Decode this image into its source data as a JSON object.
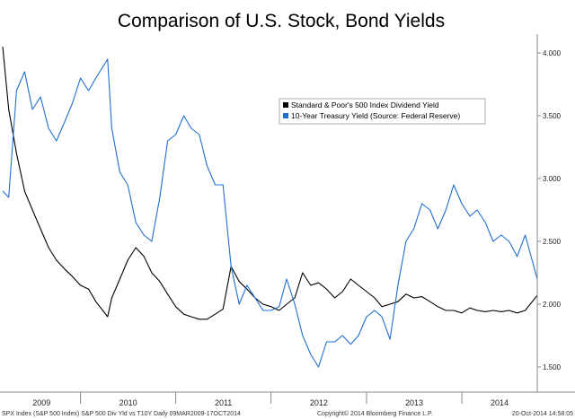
{
  "chart_data": {
    "type": "line",
    "title": "Comparison of U.S. Stock, Bond Yields",
    "xlabel": "",
    "ylabel": "",
    "x_ticks": [
      "2009",
      "2010",
      "2011",
      "2012",
      "2013",
      "2014"
    ],
    "y_ticks": [
      "1.500",
      "2.000",
      "2.500",
      "3.000",
      "3.500",
      "4.000"
    ],
    "ylim": [
      1.35,
      4.15
    ],
    "xlim": [
      "2009-03-09",
      "2014-10-17"
    ],
    "grid": false,
    "legend_position": "upper-right",
    "series": [
      {
        "name": "Standard & Poor's 500 Index Dividend Yield",
        "color": "#000000",
        "x": [
          "2009-03-09",
          "2009-04-01",
          "2009-05-01",
          "2009-06-01",
          "2009-07-01",
          "2009-08-01",
          "2009-09-01",
          "2009-10-01",
          "2009-11-01",
          "2009-12-01",
          "2010-01-01",
          "2010-02-01",
          "2010-03-01",
          "2010-04-15",
          "2010-05-01",
          "2010-06-01",
          "2010-07-01",
          "2010-08-01",
          "2010-09-01",
          "2010-10-01",
          "2010-11-01",
          "2010-12-01",
          "2011-01-01",
          "2011-02-01",
          "2011-03-01",
          "2011-04-01",
          "2011-05-01",
          "2011-06-01",
          "2011-07-01",
          "2011-08-01",
          "2011-09-01",
          "2011-10-01",
          "2011-11-01",
          "2011-12-01",
          "2012-01-01",
          "2012-02-01",
          "2012-03-01",
          "2012-04-01",
          "2012-05-01",
          "2012-06-01",
          "2012-07-01",
          "2012-08-01",
          "2012-09-01",
          "2012-10-01",
          "2012-11-01",
          "2012-12-01",
          "2013-01-01",
          "2013-02-01",
          "2013-03-01",
          "2013-04-01",
          "2013-05-01",
          "2013-06-01",
          "2013-07-01",
          "2013-08-01",
          "2013-09-01",
          "2013-10-01",
          "2013-11-01",
          "2013-12-01",
          "2014-01-01",
          "2014-02-01",
          "2014-03-01",
          "2014-04-01",
          "2014-05-01",
          "2014-06-01",
          "2014-07-01",
          "2014-08-01",
          "2014-09-01",
          "2014-10-17"
        ],
        "values": [
          4.05,
          3.55,
          3.2,
          2.9,
          2.75,
          2.6,
          2.45,
          2.35,
          2.28,
          2.22,
          2.15,
          2.12,
          2.02,
          1.9,
          2.05,
          2.2,
          2.35,
          2.45,
          2.38,
          2.25,
          2.18,
          2.08,
          1.98,
          1.92,
          1.9,
          1.88,
          1.88,
          1.92,
          1.96,
          2.3,
          2.18,
          2.12,
          2.05,
          2.0,
          1.98,
          1.95,
          2.0,
          2.05,
          2.25,
          2.15,
          2.17,
          2.12,
          2.05,
          2.1,
          2.2,
          2.15,
          2.1,
          2.05,
          1.98,
          2.0,
          2.02,
          2.08,
          2.05,
          2.06,
          2.02,
          1.98,
          1.95,
          1.95,
          1.93,
          1.97,
          1.95,
          1.94,
          1.95,
          1.94,
          1.95,
          1.93,
          1.95,
          2.07
        ]
      },
      {
        "name": "10-Year Treasury Yield (Source: Federal Reserve)",
        "color": "#1f6fd1",
        "x": [
          "2009-03-09",
          "2009-04-01",
          "2009-05-01",
          "2009-06-01",
          "2009-07-01",
          "2009-08-01",
          "2009-09-01",
          "2009-10-01",
          "2009-11-01",
          "2009-12-01",
          "2010-01-01",
          "2010-02-01",
          "2010-03-01",
          "2010-04-15",
          "2010-05-01",
          "2010-06-01",
          "2010-07-01",
          "2010-08-01",
          "2010-09-01",
          "2010-10-01",
          "2010-11-01",
          "2010-12-01",
          "2011-01-01",
          "2011-02-01",
          "2011-03-01",
          "2011-04-01",
          "2011-05-01",
          "2011-06-01",
          "2011-07-01",
          "2011-08-01",
          "2011-09-01",
          "2011-10-01",
          "2011-11-01",
          "2011-12-01",
          "2012-01-01",
          "2012-02-01",
          "2012-03-01",
          "2012-04-01",
          "2012-05-01",
          "2012-06-01",
          "2012-07-01",
          "2012-08-01",
          "2012-09-01",
          "2012-10-01",
          "2012-11-01",
          "2012-12-01",
          "2013-01-01",
          "2013-02-01",
          "2013-03-01",
          "2013-04-01",
          "2013-05-01",
          "2013-06-01",
          "2013-07-01",
          "2013-08-01",
          "2013-09-01",
          "2013-10-01",
          "2013-11-01",
          "2013-12-01",
          "2014-01-01",
          "2014-02-01",
          "2014-03-01",
          "2014-04-01",
          "2014-05-01",
          "2014-06-01",
          "2014-07-01",
          "2014-08-01",
          "2014-09-01",
          "2014-10-17"
        ],
        "values": [
          2.9,
          2.85,
          3.7,
          3.85,
          3.55,
          3.65,
          3.4,
          3.3,
          3.45,
          3.6,
          3.8,
          3.7,
          3.8,
          3.95,
          3.4,
          3.05,
          2.95,
          2.65,
          2.55,
          2.5,
          2.85,
          3.3,
          3.35,
          3.5,
          3.4,
          3.35,
          3.1,
          2.95,
          2.95,
          2.3,
          2.0,
          2.15,
          2.05,
          1.95,
          1.95,
          1.98,
          2.2,
          2.0,
          1.75,
          1.6,
          1.5,
          1.7,
          1.7,
          1.75,
          1.68,
          1.75,
          1.9,
          1.95,
          1.9,
          1.72,
          2.15,
          2.5,
          2.6,
          2.8,
          2.75,
          2.6,
          2.75,
          2.95,
          2.8,
          2.7,
          2.75,
          2.65,
          2.5,
          2.55,
          2.5,
          2.38,
          2.55,
          2.2
        ]
      }
    ]
  },
  "footer": {
    "left": "SPX Index (S&P 500 Index) S&P 500 Div Yld vs T10Y  Daily 09MAR2009-17OCT2014",
    "center": "Copyright© 2014 Bloomberg Finance L.P.",
    "right": "20-Oct-2014 14:58:05"
  }
}
